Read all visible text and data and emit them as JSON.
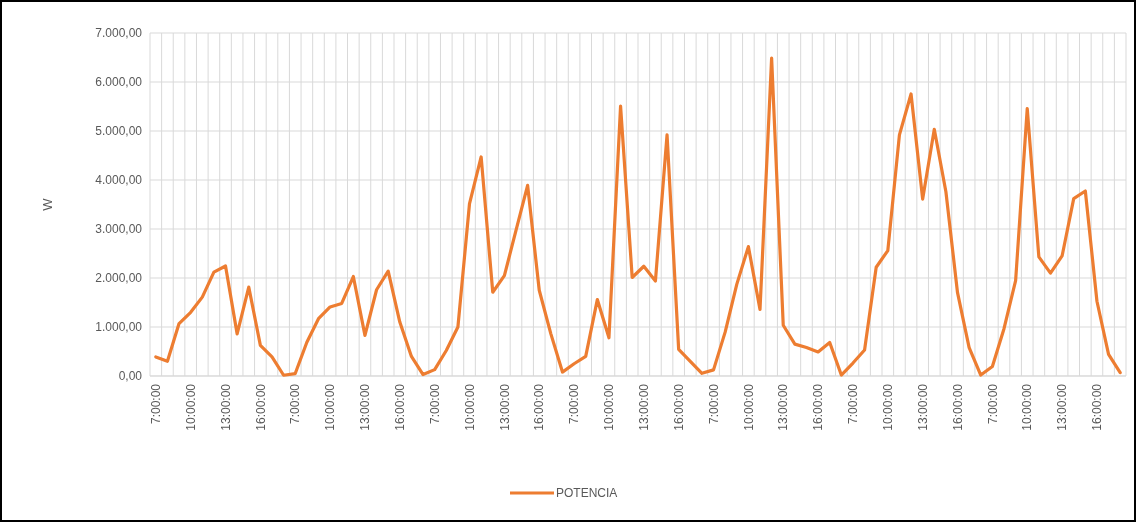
{
  "chart_data": {
    "type": "line",
    "ylabel": "W",
    "legend": "bottom",
    "grid": true,
    "line_style": "solid",
    "categories": [
      "7:00:00",
      null,
      null,
      "10:00:00",
      null,
      null,
      "13:00:00",
      null,
      null,
      "16:00:00",
      null,
      null,
      "7:00:00",
      null,
      null,
      "10:00:00",
      null,
      null,
      "13:00:00",
      null,
      null,
      "16:00:00",
      null,
      null,
      "7:00:00",
      null,
      null,
      "10:00:00",
      null,
      null,
      "13:00:00",
      null,
      null,
      "16:00:00",
      null,
      null,
      "7:00:00",
      null,
      null,
      "10:00:00",
      null,
      null,
      "13:00:00",
      null,
      null,
      "16:00:00",
      null,
      null,
      "7:00:00",
      null,
      null,
      "10:00:00",
      null,
      null,
      "13:00:00",
      null,
      null,
      "16:00:00",
      null,
      null,
      "7:00:00",
      null,
      null,
      "10:00:00",
      null,
      null,
      "13:00:00",
      null,
      null,
      "16:00:00",
      null,
      null,
      "7:00:00",
      null,
      null,
      "10:00:00",
      null,
      null,
      "13:00:00",
      null,
      null,
      "16:00:00",
      null,
      null
    ],
    "ylim": [
      0,
      7000
    ],
    "yticks": [
      {
        "value": 0,
        "label": "0,00"
      },
      {
        "value": 1000,
        "label": "1.000,00"
      },
      {
        "value": 2000,
        "label": "2.000,00"
      },
      {
        "value": 3000,
        "label": "3.000,00"
      },
      {
        "value": 4000,
        "label": "4.000,00"
      },
      {
        "value": 5000,
        "label": "5.000,00"
      },
      {
        "value": 6000,
        "label": "6.000,00"
      },
      {
        "value": 7000,
        "label": "7.000,00"
      }
    ],
    "series": [
      {
        "name": "POTENCIA",
        "color": "#ed7d31",
        "values": [
          390,
          300,
          1070,
          1300,
          1610,
          2120,
          2245,
          860,
          1815,
          625,
          390,
          15,
          50,
          690,
          1170,
          1410,
          1480,
          2030,
          830,
          1760,
          2140,
          1100,
          400,
          30,
          130,
          520,
          1000,
          3520,
          4470,
          1710,
          2050,
          2970,
          3890,
          1750,
          860,
          80,
          250,
          400,
          1560,
          780,
          5510,
          2010,
          2240,
          1940,
          4920,
          545,
          300,
          55,
          125,
          895,
          1870,
          2640,
          1360,
          6490,
          1035,
          650,
          580,
          490,
          685,
          20,
          265,
          530,
          2220,
          2560,
          4920,
          5755,
          3610,
          5035,
          3760,
          1700,
          580,
          20,
          195,
          965,
          1945,
          5455,
          2430,
          2100,
          2450,
          3620,
          3775,
          1525,
          440,
          70
        ]
      }
    ]
  }
}
